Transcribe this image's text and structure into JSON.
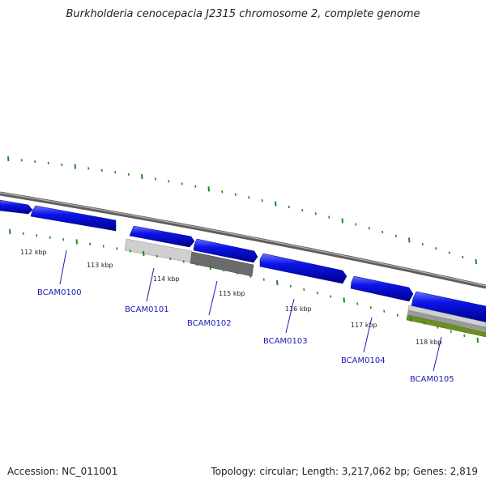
{
  "title": "Burkholderia cenocepacia J2315 chromosome 2, complete genome",
  "footer": {
    "accession": "Accession: NC_011001",
    "summary": "Topology: circular; Length: 3,217,062 bp; Genes: 2,819"
  },
  "colors": {
    "backbone": "#8a8a8a",
    "gene_forward": "#0a14e8",
    "tick": "#1d8a1d",
    "locus_label": "#1c1cb0",
    "feature_light_gray": "#c8c8c8",
    "feature_dark_gray": "#6a6a6a",
    "feature_olive": "#6b8e23"
  },
  "ruler": {
    "labels": [
      {
        "text": "112 kbp"
      },
      {
        "text": "113 kbp"
      },
      {
        "text": "114 kbp"
      },
      {
        "text": "115 kbp"
      },
      {
        "text": "116 kbp"
      },
      {
        "text": "117 kbp"
      },
      {
        "text": "118 kbp"
      }
    ]
  },
  "loci": [
    {
      "name": "BCAM0100"
    },
    {
      "name": "BCAM0101"
    },
    {
      "name": "BCAM0102"
    },
    {
      "name": "BCAM0103"
    },
    {
      "name": "BCAM0104"
    },
    {
      "name": "BCAM0105"
    }
  ]
}
